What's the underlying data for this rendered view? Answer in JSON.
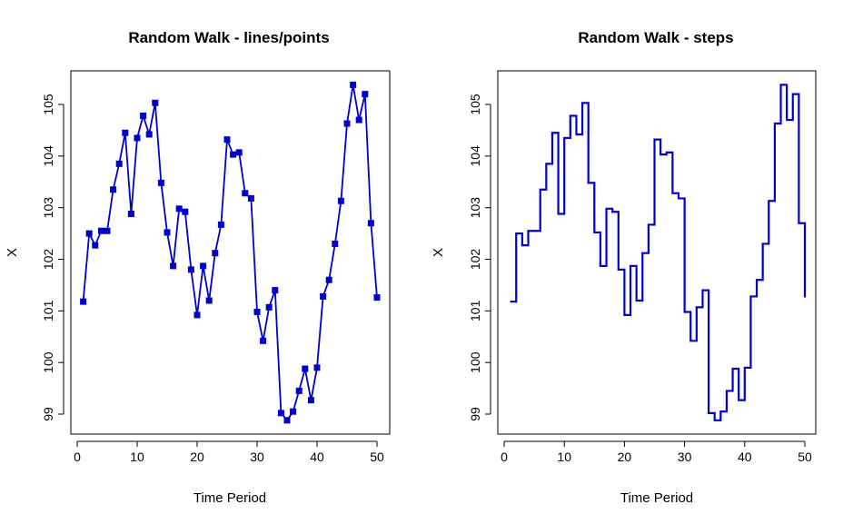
{
  "chart_data": [
    {
      "type": "line",
      "title": "Random Walk - lines/points",
      "xlabel": "Time Period",
      "ylabel": "X",
      "xlim": [
        0,
        52
      ],
      "ylim": [
        98.6,
        105.7
      ],
      "xticks": [
        0,
        10,
        20,
        30,
        40,
        50
      ],
      "yticks": [
        99,
        100,
        101,
        102,
        103,
        104,
        105
      ],
      "color": "#0000CD",
      "markers": "square",
      "grid": false,
      "series": [
        {
          "x": [
            1,
            2,
            3,
            4,
            5,
            6,
            7,
            8,
            9,
            10,
            11,
            12,
            13,
            14,
            15,
            16,
            17,
            18,
            19,
            20,
            21,
            22,
            23,
            24,
            25,
            26,
            27,
            28,
            29,
            30,
            31,
            32,
            33,
            34,
            35,
            36,
            37,
            38,
            39,
            40,
            41,
            42,
            43,
            44,
            45,
            46,
            47,
            48,
            49,
            50
          ],
          "values": [
            101.18,
            102.5,
            102.27,
            102.55,
            102.55,
            103.35,
            103.85,
            104.45,
            102.88,
            104.35,
            104.78,
            104.42,
            105.03,
            103.48,
            102.52,
            101.87,
            102.98,
            102.92,
            101.8,
            100.92,
            101.87,
            101.2,
            102.12,
            102.67,
            104.32,
            104.03,
            104.07,
            103.28,
            103.18,
            100.98,
            100.42,
            101.07,
            101.4,
            99.02,
            98.88,
            99.05,
            99.45,
            99.88,
            99.27,
            99.9,
            101.28,
            101.6,
            102.3,
            103.13,
            104.63,
            105.38,
            104.7,
            105.2,
            102.7,
            101.26
          ]
        }
      ]
    },
    {
      "type": "line",
      "title": "Random Walk - steps",
      "xlabel": "Time Period",
      "ylabel": "X",
      "xlim": [
        0,
        52
      ],
      "ylim": [
        98.6,
        105.7
      ],
      "xticks": [
        0,
        10,
        20,
        30,
        40,
        50
      ],
      "yticks": [
        99,
        100,
        101,
        102,
        103,
        104,
        105
      ],
      "color": "#0000CD",
      "step": true,
      "grid": false,
      "series": [
        {
          "x": [
            1,
            2,
            3,
            4,
            5,
            6,
            7,
            8,
            9,
            10,
            11,
            12,
            13,
            14,
            15,
            16,
            17,
            18,
            19,
            20,
            21,
            22,
            23,
            24,
            25,
            26,
            27,
            28,
            29,
            30,
            31,
            32,
            33,
            34,
            35,
            36,
            37,
            38,
            39,
            40,
            41,
            42,
            43,
            44,
            45,
            46,
            47,
            48,
            49,
            50
          ],
          "values": [
            101.18,
            102.5,
            102.27,
            102.55,
            102.55,
            103.35,
            103.85,
            104.45,
            102.88,
            104.35,
            104.78,
            104.42,
            105.03,
            103.48,
            102.52,
            101.87,
            102.98,
            102.92,
            101.8,
            100.92,
            101.87,
            101.2,
            102.12,
            102.67,
            104.32,
            104.03,
            104.07,
            103.28,
            103.18,
            100.98,
            100.42,
            101.07,
            101.4,
            99.02,
            98.88,
            99.05,
            99.45,
            99.88,
            99.27,
            99.9,
            101.28,
            101.6,
            102.3,
            103.13,
            104.63,
            105.38,
            104.7,
            105.2,
            102.7,
            101.26
          ]
        }
      ]
    }
  ]
}
